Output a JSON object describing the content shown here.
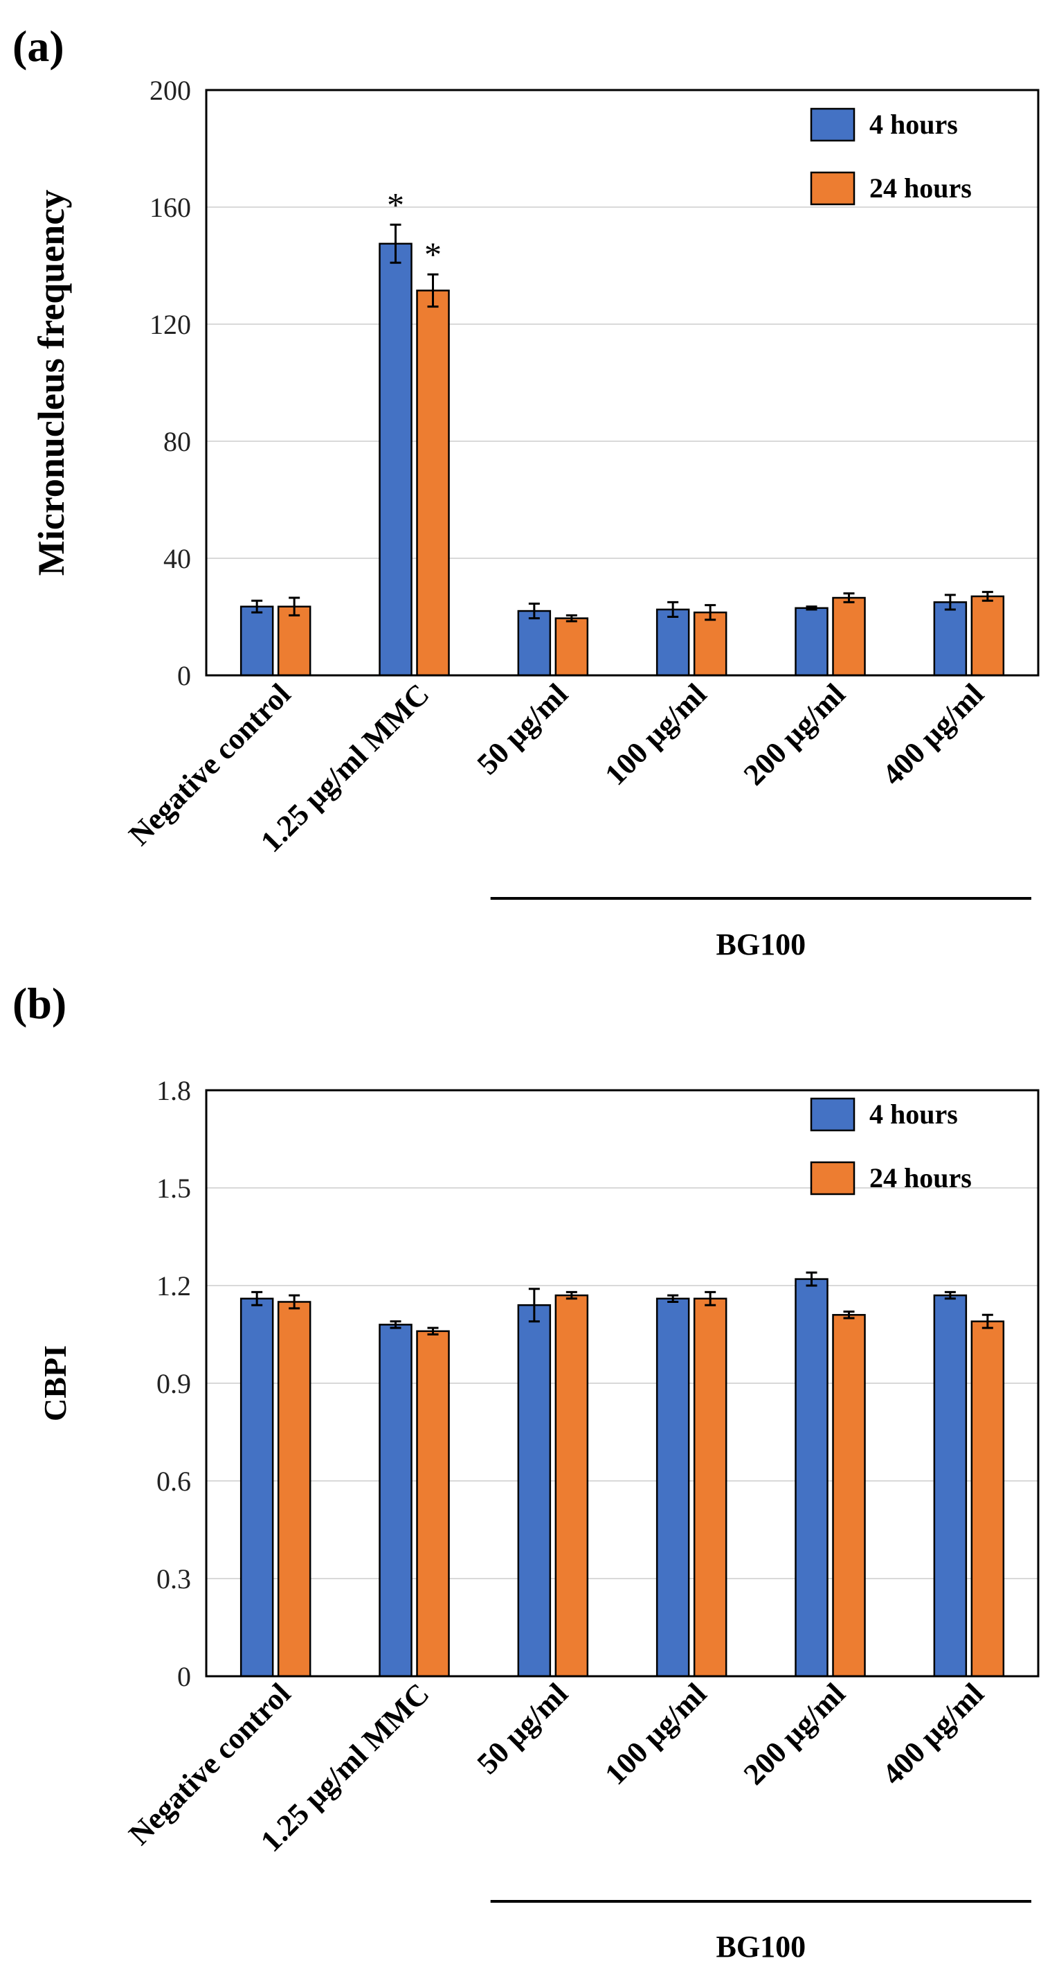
{
  "chart_data": [
    {
      "type": "bar",
      "panel_label": "(a)",
      "ylabel": "Micronucleus frequency",
      "ylim": [
        0,
        200
      ],
      "yticks": [
        "0",
        "40",
        "80",
        "120",
        "160",
        "200"
      ],
      "ytick_values": [
        0,
        40,
        80,
        120,
        160,
        200
      ],
      "grid": true,
      "categories": [
        "Negative control",
        "1.25 µg/ml MMC",
        "50 µg/ml",
        "100 µg/ml",
        "200 µg/ml",
        "400 µg/ml"
      ],
      "series": [
        {
          "name": "4 hours",
          "color": "#4472c4",
          "values": [
            23.5,
            147.5,
            22,
            22.5,
            23,
            25
          ],
          "errors": [
            2,
            6.5,
            2.5,
            2.5,
            0.5,
            2.5
          ]
        },
        {
          "name": "24 hours",
          "color": "#ed7d31",
          "values": [
            23.5,
            131.5,
            19.5,
            21.5,
            26.5,
            27
          ],
          "errors": [
            3,
            5.5,
            1,
            2.5,
            1.5,
            1.5
          ]
        }
      ],
      "annotations": [
        {
          "text": "*",
          "category_index": 1,
          "series_index": 0
        },
        {
          "text": "*",
          "category_index": 1,
          "series_index": 1
        }
      ],
      "group_label": "BG100",
      "group_span": [
        2,
        5
      ],
      "legend_position": "top-right"
    },
    {
      "type": "bar",
      "panel_label": "(b)",
      "ylabel": "CBPI",
      "ylim": [
        0,
        1.8
      ],
      "yticks": [
        "0",
        "0.3",
        "0.6",
        "0.9",
        "1.2",
        "1.5",
        "1.8"
      ],
      "ytick_values": [
        0,
        0.3,
        0.6,
        0.9,
        1.2,
        1.5,
        1.8
      ],
      "grid": true,
      "categories": [
        "Negative control",
        "1.25 µg/ml MMC",
        "50 µg/ml",
        "100 µg/ml",
        "200 µg/ml",
        "400 µg/ml"
      ],
      "series": [
        {
          "name": "4 hours",
          "color": "#4472c4",
          "values": [
            1.16,
            1.08,
            1.14,
            1.16,
            1.22,
            1.17
          ],
          "errors": [
            0.02,
            0.01,
            0.05,
            0.01,
            0.02,
            0.01
          ]
        },
        {
          "name": "24 hours",
          "color": "#ed7d31",
          "values": [
            1.15,
            1.06,
            1.17,
            1.16,
            1.11,
            1.09
          ],
          "errors": [
            0.02,
            0.01,
            0.01,
            0.02,
            0.01,
            0.02
          ]
        }
      ],
      "annotations": [],
      "group_label": "BG100",
      "group_span": [
        2,
        5
      ],
      "legend_position": "top-right"
    }
  ]
}
